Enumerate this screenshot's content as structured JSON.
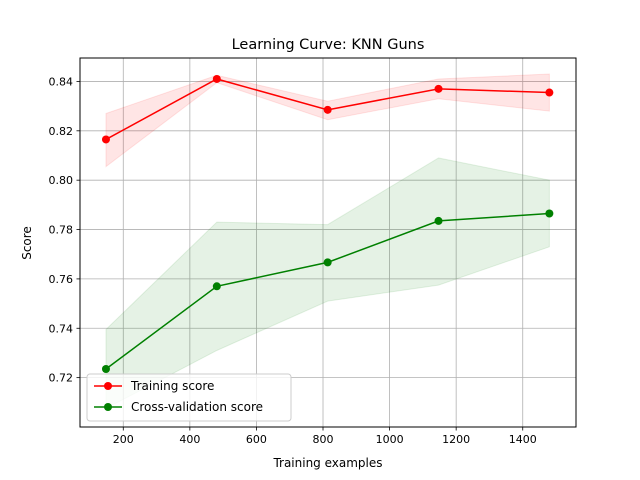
{
  "chart_data": {
    "type": "line",
    "title": "Learning Curve: KNN Guns",
    "xlabel": "Training examples",
    "ylabel": "Score",
    "xlim": [
      70,
      1560
    ],
    "ylim": [
      0.7,
      0.8495
    ],
    "xticks": [
      200,
      400,
      600,
      800,
      1000,
      1200,
      1400
    ],
    "yticks": [
      0.72,
      0.74,
      0.76,
      0.78,
      0.8,
      0.82,
      0.84
    ],
    "grid": true,
    "legend_position": "lower-left",
    "x": [
      148,
      481,
      814,
      1147,
      1480
    ],
    "series": [
      {
        "name": "Training score",
        "color": "#ff0000",
        "band_color": "#ff0000",
        "values": [
          0.8165,
          0.841,
          0.8285,
          0.837,
          0.8355
        ],
        "lower": [
          0.8055,
          0.8395,
          0.8245,
          0.833,
          0.828
        ],
        "upper": [
          0.827,
          0.8425,
          0.832,
          0.841,
          0.843
        ]
      },
      {
        "name": "Cross-validation score",
        "color": "#008000",
        "band_color": "#008000",
        "values": [
          0.7235,
          0.757,
          0.7667,
          0.7835,
          0.7865
        ],
        "lower": [
          0.7075,
          0.731,
          0.751,
          0.7575,
          0.773
        ],
        "upper": [
          0.7395,
          0.783,
          0.782,
          0.809,
          0.8
        ]
      }
    ]
  }
}
